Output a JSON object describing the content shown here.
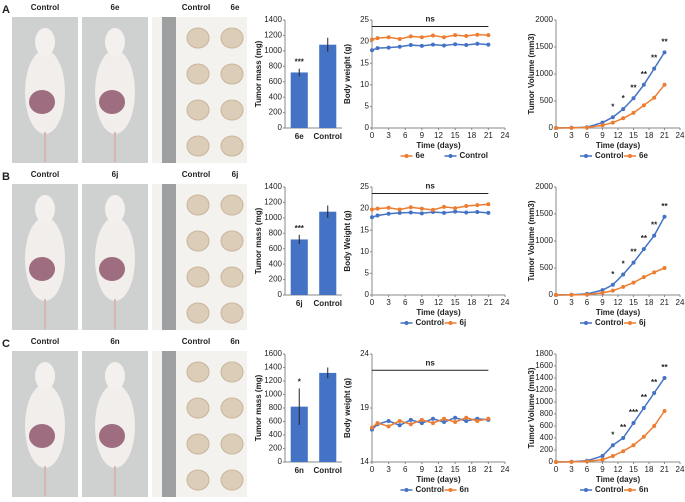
{
  "panels": [
    {
      "letter": "A",
      "labels": [
        "Control",
        "6e",
        "Control",
        "6e"
      ]
    },
    {
      "letter": "B",
      "labels": [
        "Control",
        "6j",
        "Control",
        "6j"
      ]
    },
    {
      "letter": "C",
      "labels": [
        "Control",
        "6n",
        "Control",
        "6n"
      ]
    }
  ],
  "chart_data": [
    {
      "type": "bar",
      "ylabel": "Tumor mass (mg)",
      "categories": [
        "6e",
        "Control"
      ],
      "values": [
        720,
        1080
      ],
      "errors": [
        50,
        90
      ],
      "significance": [
        "***",
        null
      ],
      "color": "#4472c4",
      "ylim": [
        0,
        1400
      ],
      "yticks": [
        0,
        200,
        400,
        600,
        800,
        1000,
        1200,
        1400
      ],
      "grid": false
    },
    {
      "type": "line",
      "xlabel": "Time (days)",
      "ylabel": "Body weight (g)",
      "x": [
        0,
        1,
        3,
        5,
        7,
        9,
        11,
        13,
        15,
        17,
        19,
        21
      ],
      "series": [
        {
          "name": "6e",
          "color": "#ed7d31",
          "values": [
            20.5,
            20.8,
            21,
            20.6,
            21.2,
            21,
            21.4,
            21,
            21.5,
            21.3,
            21.6,
            21.5
          ]
        },
        {
          "name": "Control",
          "color": "#4472c4",
          "values": [
            18,
            18.5,
            18.6,
            18.8,
            19.2,
            19,
            19.3,
            19.1,
            19.4,
            19.2,
            19.5,
            19.3
          ]
        }
      ],
      "annotations": [
        {
          "text": "ns",
          "x": [
            0,
            21
          ],
          "y": 23.5
        }
      ],
      "xlim": [
        0,
        24
      ],
      "xticks": [
        0,
        3,
        6,
        9,
        12,
        15,
        18,
        21,
        24
      ],
      "ylim": [
        0,
        25
      ],
      "yticks": [
        0,
        5,
        10,
        15,
        20,
        25
      ],
      "grid": false
    },
    {
      "type": "line",
      "xlabel": "Time (days)",
      "ylabel": "Tumor Volume (mm3)",
      "x": [
        0,
        3,
        6,
        9,
        11,
        13,
        15,
        17,
        19,
        21
      ],
      "series": [
        {
          "name": "Control",
          "color": "#4472c4",
          "values": [
            0,
            5,
            15,
            100,
            200,
            350,
            550,
            800,
            1100,
            1400
          ]
        },
        {
          "name": "6e",
          "color": "#ed7d31",
          "values": [
            0,
            3,
            10,
            50,
            100,
            180,
            280,
            420,
            560,
            800
          ]
        }
      ],
      "significance": [
        null,
        null,
        null,
        null,
        "*",
        "*",
        "**",
        "**",
        "**",
        "**"
      ],
      "xlim": [
        0,
        24
      ],
      "xticks": [
        0,
        3,
        6,
        9,
        12,
        15,
        18,
        21,
        24
      ],
      "ylim": [
        0,
        2000
      ],
      "yticks": [
        0,
        500,
        1000,
        1500,
        2000
      ],
      "grid": false
    },
    {
      "type": "bar",
      "ylabel": "Tumor mass (mg)",
      "categories": [
        "6j",
        "Control"
      ],
      "values": [
        720,
        1080
      ],
      "errors": [
        60,
        80
      ],
      "significance": [
        "***",
        null
      ],
      "color": "#4472c4",
      "ylim": [
        0,
        1400
      ],
      "yticks": [
        0,
        200,
        400,
        600,
        800,
        1000,
        1200,
        1400
      ],
      "grid": false
    },
    {
      "type": "line",
      "xlabel": "Time (days)",
      "ylabel": "Body Weight (g)",
      "x": [
        0,
        1,
        3,
        5,
        7,
        9,
        11,
        13,
        15,
        17,
        19,
        21
      ],
      "series": [
        {
          "name": "Control",
          "color": "#4472c4",
          "values": [
            18,
            18.4,
            18.8,
            19,
            19.1,
            18.9,
            19.2,
            19,
            19.3,
            19.1,
            19.2,
            19
          ]
        },
        {
          "name": "6j",
          "color": "#ed7d31",
          "values": [
            19.8,
            20,
            20.2,
            19.8,
            20.3,
            20,
            19.7,
            20.4,
            20.1,
            20.6,
            20.8,
            21
          ]
        }
      ],
      "annotations": [
        {
          "text": "ns",
          "x": [
            0,
            21
          ],
          "y": 23.5
        }
      ],
      "xlim": [
        0,
        24
      ],
      "xticks": [
        0,
        3,
        6,
        9,
        12,
        15,
        18,
        21,
        24
      ],
      "ylim": [
        0,
        25
      ],
      "yticks": [
        0,
        5,
        10,
        15,
        20,
        25
      ],
      "grid": false
    },
    {
      "type": "line",
      "xlabel": "Time (days)",
      "ylabel": "Tumor Volume (mm3)",
      "x": [
        0,
        3,
        6,
        9,
        11,
        13,
        15,
        17,
        19,
        21
      ],
      "series": [
        {
          "name": "Control",
          "color": "#4472c4",
          "values": [
            0,
            5,
            20,
            90,
            190,
            380,
            600,
            850,
            1100,
            1450
          ]
        },
        {
          "name": "6j",
          "color": "#ed7d31",
          "values": [
            0,
            3,
            8,
            40,
            80,
            150,
            230,
            330,
            420,
            500
          ]
        }
      ],
      "significance": [
        null,
        null,
        null,
        null,
        "*",
        "*",
        "**",
        "**",
        "**",
        "**"
      ],
      "xlim": [
        0,
        24
      ],
      "xticks": [
        0,
        3,
        6,
        9,
        12,
        15,
        18,
        21,
        24
      ],
      "ylim": [
        0,
        2000
      ],
      "yticks": [
        0,
        500,
        1000,
        1500,
        2000
      ],
      "grid": false
    },
    {
      "type": "bar",
      "ylabel": "Tumor mass (mg)",
      "categories": [
        "6n",
        "Control"
      ],
      "values": [
        820,
        1320
      ],
      "errors": [
        270,
        80
      ],
      "significance": [
        "*",
        null
      ],
      "color": "#4472c4",
      "ylim": [
        0,
        1600
      ],
      "yticks": [
        0,
        200,
        400,
        600,
        800,
        1000,
        1200,
        1400,
        1600
      ],
      "grid": false
    },
    {
      "type": "line",
      "xlabel": "Time (days)",
      "ylabel": "Body weight (g)",
      "x": [
        0,
        1,
        3,
        5,
        7,
        9,
        11,
        13,
        15,
        17,
        19,
        21
      ],
      "series": [
        {
          "name": "Control",
          "color": "#4472c4",
          "values": [
            17,
            17.5,
            17.8,
            17.4,
            17.9,
            17.6,
            18,
            17.7,
            18.1,
            17.8,
            18,
            17.9
          ]
        },
        {
          "name": "6n",
          "color": "#ed7d31",
          "values": [
            17.2,
            17.6,
            17.3,
            17.8,
            17.5,
            17.9,
            17.6,
            18,
            17.7,
            18.1,
            17.8,
            18
          ]
        }
      ],
      "annotations": [
        {
          "text": "ns",
          "x": [
            0,
            21
          ],
          "y": 22.5
        }
      ],
      "xlim": [
        0,
        24
      ],
      "xticks": [
        0,
        3,
        6,
        9,
        12,
        15,
        18,
        21,
        24
      ],
      "ylim": [
        14,
        24
      ],
      "yticks": [
        14,
        19,
        24
      ],
      "grid": false
    },
    {
      "type": "line",
      "xlabel": "Time (days)",
      "ylabel": "Tumor Volume (mm3)",
      "x": [
        0,
        3,
        6,
        9,
        11,
        13,
        15,
        17,
        19,
        21
      ],
      "series": [
        {
          "name": "Control",
          "color": "#4472c4",
          "values": [
            0,
            5,
            20,
            100,
            280,
            400,
            650,
            900,
            1150,
            1400
          ]
        },
        {
          "name": "6n",
          "color": "#ed7d31",
          "values": [
            0,
            3,
            10,
            40,
            100,
            180,
            280,
            420,
            600,
            850
          ]
        }
      ],
      "significance": [
        null,
        null,
        null,
        null,
        "*",
        "**",
        "***",
        "**",
        "**",
        "**"
      ],
      "xlim": [
        0,
        24
      ],
      "xticks": [
        0,
        3,
        6,
        9,
        12,
        15,
        18,
        21,
        24
      ],
      "ylim": [
        0,
        1800
      ],
      "yticks": [
        0,
        200,
        400,
        600,
        800,
        1000,
        1200,
        1400,
        1600,
        1800
      ],
      "grid": false
    }
  ]
}
